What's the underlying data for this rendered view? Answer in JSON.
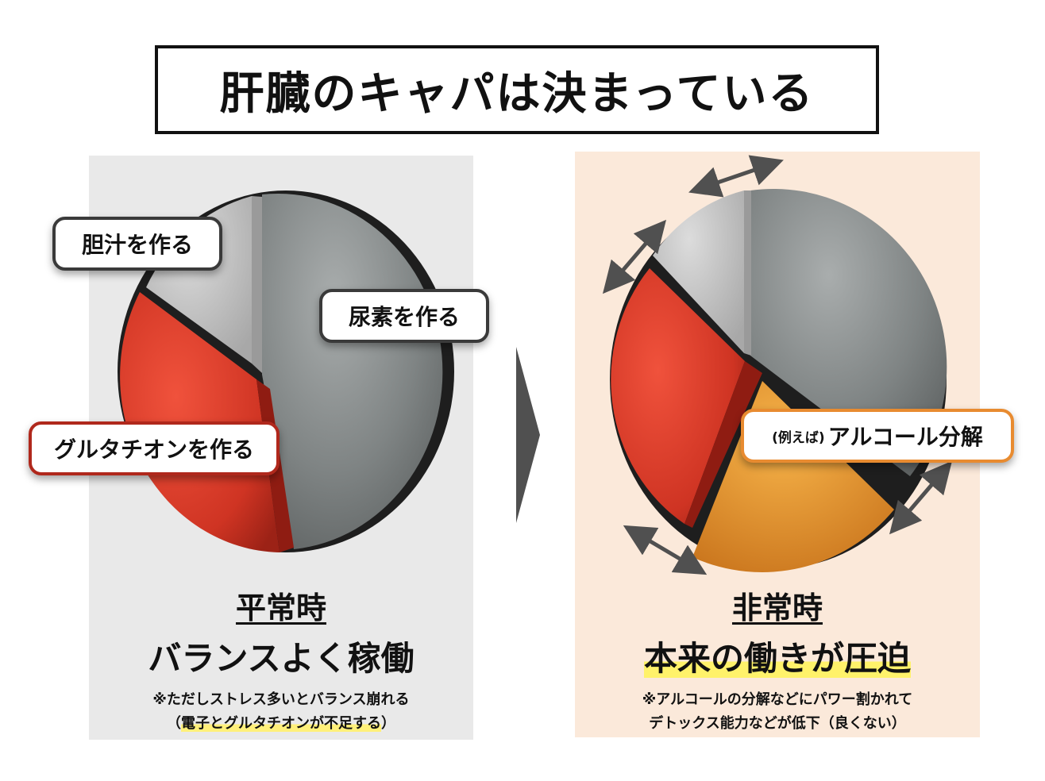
{
  "title": "肝臓のキャパは決まっている",
  "left_panel": {
    "labels": {
      "bile": "胆汁を作る",
      "urea": "尿素を作る",
      "glutathione": "グルタチオンを作る"
    },
    "state_title": "平常時",
    "state_main": "バランスよく稼働",
    "note_line1": "※ただしストレス多いとバランス崩れる",
    "note_line2_prefix": "（",
    "note_line2_highlight": "電子とグルタチオンが不足する",
    "note_line2_suffix": "）"
  },
  "right_panel": {
    "label_prefix": "(例えば)",
    "label_main": "アルコール分解",
    "state_title": "非常時",
    "state_main": "本来の働きが圧迫",
    "note_line1": "※アルコールの分解などにパワー割かれて",
    "note_line2": "デトックス能力などが低下（良くない）"
  },
  "colors": {
    "gray_slice": "#8a8f8f",
    "light_slice": "#c2c2c2",
    "red_slice": "#d9392a",
    "orange_slice": "#e6952e",
    "left_bg": "#e9e9e9",
    "right_bg": "#fbe9da",
    "arrow": "#505050"
  },
  "icons": {
    "section_arrow": "right-triangle-arrow",
    "capacity_arrows": "double-headed-arrow"
  }
}
